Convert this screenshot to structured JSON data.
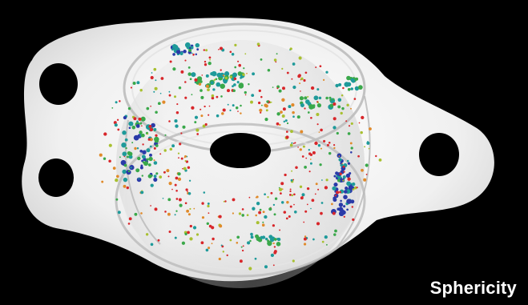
{
  "caption": "Sphericity",
  "colors": {
    "background": "#000000",
    "caption_text": "#ffffff",
    "part_body": "#f2f2f2",
    "part_shadow": "#c9c9c9",
    "hole": "#000000",
    "pore_red": "#d8262a",
    "pore_orange": "#e08a2a",
    "pore_yellow_green": "#a8c030",
    "pore_green": "#3aa84a",
    "pore_teal": "#1e9a9a",
    "pore_blue": "#2a3aa8"
  }
}
